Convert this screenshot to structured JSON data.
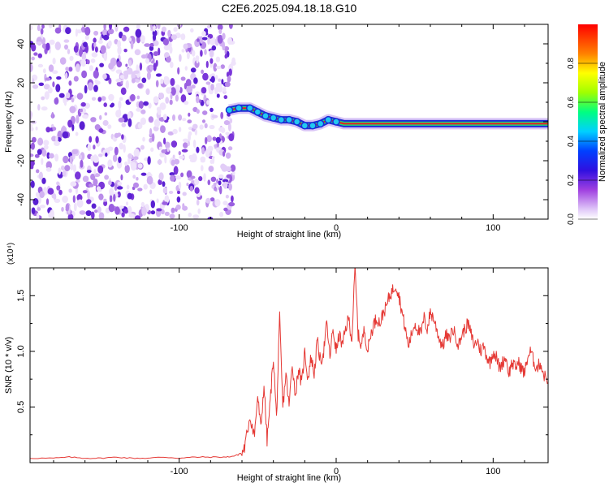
{
  "title": "C2E6.2025.094.18.18.G10",
  "colors": {
    "trace": "#e53935",
    "frame": "#000000",
    "scatter": "#7b2fe0",
    "track_outer": "#1e2bd6",
    "track_mid": "#1fd67a",
    "track_inner": "#e61e1e"
  },
  "chart_data": [
    {
      "type": "heatmap",
      "xlabel": "Height of straight line (km)",
      "ylabel": "Frequency (Hz)",
      "xlim": [
        -195,
        135
      ],
      "ylim": [
        -50,
        50
      ],
      "x_ticks": [
        -100,
        0,
        100
      ],
      "x_tick_labels": [
        "-100",
        "0",
        "100"
      ],
      "y_ticks": [
        -40,
        -20,
        0,
        20,
        40
      ],
      "y_tick_labels": [
        "-40",
        "-20",
        "0",
        "20",
        "40"
      ],
      "colorbar": {
        "label": "Normalized spectral amplitude",
        "range": [
          0.0,
          1.0
        ],
        "ticks": [
          0.0,
          0.2,
          0.4,
          0.6,
          0.8
        ],
        "tick_labels": [
          "0.0",
          "0.2",
          "0.4",
          "0.6",
          "0.8"
        ],
        "colormap": [
          "#ffffff",
          "#e0c8f8",
          "#a040e0",
          "#3010e0",
          "#0040ff",
          "#00d0ff",
          "#00ff80",
          "#a0ff00",
          "#ffff00",
          "#ff8000",
          "#ff0000"
        ]
      },
      "noise_region_x": [
        -195,
        -65
      ],
      "signal_track": [
        {
          "x": -68,
          "y": 6
        },
        {
          "x": -62,
          "y": 7
        },
        {
          "x": -55,
          "y": 7
        },
        {
          "x": -50,
          "y": 5
        },
        {
          "x": -45,
          "y": 3
        },
        {
          "x": -40,
          "y": 2
        },
        {
          "x": -35,
          "y": 1
        },
        {
          "x": -30,
          "y": 1
        },
        {
          "x": -25,
          "y": 0
        },
        {
          "x": -20,
          "y": -2
        },
        {
          "x": -15,
          "y": -2
        },
        {
          "x": -10,
          "y": -1
        },
        {
          "x": -5,
          "y": 1
        },
        {
          "x": 0,
          "y": 0
        },
        {
          "x": 5,
          "y": -1
        },
        {
          "x": 20,
          "y": -1
        },
        {
          "x": 60,
          "y": -1
        },
        {
          "x": 100,
          "y": -1
        },
        {
          "x": 135,
          "y": -1
        }
      ]
    },
    {
      "type": "line",
      "xlabel": "Height of straight line (km)",
      "ylabel": "SNR (10 * v/v)",
      "yscale_label": "(x10⁴)",
      "xlim": [
        -195,
        135
      ],
      "ylim": [
        0.0,
        1.75
      ],
      "x_ticks": [
        -100,
        0,
        100
      ],
      "x_tick_labels": [
        "-100",
        "0",
        "100"
      ],
      "y_ticks": [
        0.5,
        1.0,
        1.5
      ],
      "y_tick_labels": [
        "0.5",
        "1.0",
        "1.5"
      ],
      "series": [
        {
          "x": [
            -195,
            -180,
            -170,
            -160,
            -150,
            -140,
            -130,
            -120,
            -110,
            -100,
            -90,
            -80,
            -70,
            -65,
            -60,
            -58,
            -55,
            -52,
            -50,
            -48,
            -46,
            -44,
            -42,
            -40,
            -38,
            -36,
            -34,
            -32,
            -30,
            -28,
            -26,
            -24,
            -22,
            -20,
            -18,
            -16,
            -14,
            -12,
            -10,
            -8,
            -6,
            -4,
            -2,
            0,
            2,
            4,
            6,
            8,
            10,
            12,
            14,
            16,
            18,
            20,
            22,
            24,
            26,
            28,
            30,
            32,
            34,
            36,
            38,
            40,
            42,
            44,
            46,
            48,
            50,
            52,
            54,
            56,
            58,
            60,
            62,
            64,
            66,
            68,
            70,
            72,
            74,
            76,
            78,
            80,
            82,
            84,
            86,
            88,
            90,
            92,
            94,
            96,
            98,
            100,
            102,
            104,
            106,
            108,
            110,
            112,
            114,
            116,
            118,
            120,
            122,
            124,
            126,
            128,
            130,
            132,
            135
          ],
          "y": [
            0.04,
            0.04,
            0.05,
            0.04,
            0.04,
            0.05,
            0.04,
            0.04,
            0.05,
            0.04,
            0.05,
            0.05,
            0.05,
            0.06,
            0.08,
            0.15,
            0.42,
            0.25,
            0.6,
            0.3,
            0.7,
            0.2,
            0.55,
            0.95,
            0.4,
            1.3,
            0.5,
            0.8,
            0.5,
            0.9,
            0.6,
            0.85,
            0.7,
            1.0,
            0.75,
            0.95,
            0.8,
            1.1,
            0.9,
            1.0,
            1.25,
            0.95,
            1.2,
            1.0,
            1.15,
            1.05,
            1.2,
            1.3,
            1.1,
            1.75,
            1.15,
            1.05,
            1.2,
            1.0,
            1.15,
            1.25,
            1.3,
            1.25,
            1.35,
            1.4,
            1.5,
            1.55,
            1.6,
            1.5,
            1.35,
            1.2,
            1.05,
            1.15,
            1.25,
            1.2,
            1.15,
            1.3,
            1.2,
            1.35,
            1.3,
            1.2,
            1.1,
            1.05,
            1.15,
            1.1,
            1.2,
            1.15,
            1.05,
            1.15,
            1.2,
            1.25,
            1.15,
            1.05,
            1.1,
            1.0,
            1.05,
            0.95,
            0.9,
            1.0,
            0.95,
            0.85,
            0.9,
            0.95,
            0.8,
            0.9,
            0.85,
            0.9,
            0.85,
            0.8,
            0.95,
            1.0,
            0.9,
            0.85,
            0.9,
            0.8,
            0.72
          ]
        }
      ]
    }
  ]
}
